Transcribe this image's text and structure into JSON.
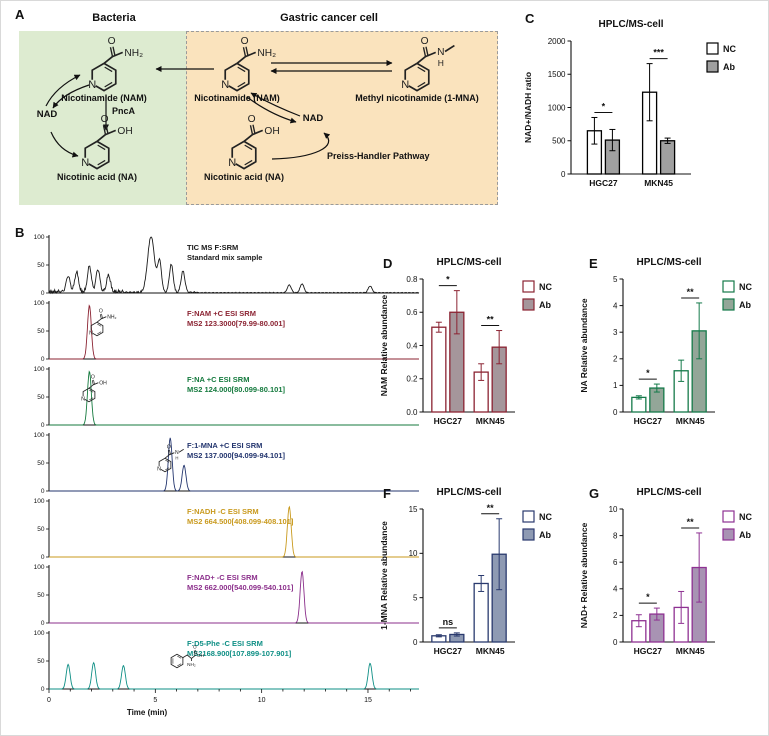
{
  "panels": {
    "A": {
      "label": "A",
      "bacteria_header": "Bacteria",
      "cancer_header": "Gastric cancer cell",
      "green": {
        "nam": "Nicotinamide (NAM)",
        "nad": "NAD",
        "pnca": "PncA",
        "na": "Nicotinic acid (NA)"
      },
      "orange": {
        "nam": "Nicotinamide (NAM)",
        "mna": "Methyl nicotinamide (1-MNA)",
        "nad": "NAD",
        "na": "Nicotinic acid (NA)",
        "pathway": "Preiss-Handler Pathway"
      },
      "colors": {
        "bacteria_bg": "#ddebd0",
        "cancer_bg": "#fae3bd",
        "dashed_border": "#9a9a9a"
      }
    },
    "B": {
      "label": "B"
    },
    "C": {
      "label": "C"
    },
    "D": {
      "label": "D"
    },
    "E": {
      "label": "E"
    },
    "F": {
      "label": "F"
    },
    "G": {
      "label": "G"
    }
  },
  "structures": {
    "ring_n": "N",
    "nam": {
      "o": "O",
      "sub": "NH₂"
    },
    "na": {
      "o": "O",
      "sub": "OH"
    },
    "mna": {
      "o": "O",
      "n": "N",
      "h": "H"
    },
    "phe": {
      "o": "O",
      "oh": "OH",
      "nh2": "NH₂"
    }
  },
  "chart_data": [
    {
      "id": "B",
      "type": "line",
      "title": "",
      "xlabel": "Time (min)",
      "xlim": [
        0,
        17.4
      ],
      "xticks": [
        0,
        5,
        10,
        15
      ],
      "ylim": [
        0,
        100
      ],
      "yticks": [
        0,
        50,
        100
      ],
      "traces": [
        {
          "name": "TIC",
          "color": "#1a1a1a",
          "label_lines": [
            "TIC MS F:SRM",
            "Standard mix sample"
          ],
          "noise": true,
          "peaks": [
            [
              0.9,
              28
            ],
            [
              1.3,
              35
            ],
            [
              1.9,
              46
            ],
            [
              2.3,
              40
            ],
            [
              2.8,
              30
            ],
            [
              4.8,
              100,
              0.16
            ],
            [
              5.2,
              55
            ],
            [
              5.75,
              50
            ],
            [
              6.3,
              38
            ],
            [
              11.3,
              14
            ],
            [
              11.9,
              16
            ],
            [
              15.1,
              12
            ]
          ]
        },
        {
          "name": "NAM",
          "color": "#8b2332",
          "label_lines": [
            "F:NAM +C ESI SRM",
            "MS2 123.3000[79.99-80.001]"
          ],
          "structure": "nam",
          "peaks": [
            [
              1.9,
              96
            ]
          ]
        },
        {
          "name": "NA",
          "color": "#157a3e",
          "label_lines": [
            "F:NA +C ESI SRM",
            "MS2 124.000[80.099-80.101]"
          ],
          "structure": "na",
          "peaks": [
            [
              1.9,
              96
            ]
          ]
        },
        {
          "name": "1-MNA",
          "color": "#23356e",
          "label_lines": [
            "F:1-MNA +C ESI SRM",
            "MS2 137.000[94.099-94.101]"
          ],
          "structure": "mna",
          "peaks": [
            [
              5.7,
              95
            ],
            [
              6.35,
              46
            ]
          ]
        },
        {
          "name": "NADH",
          "color": "#c99a1e",
          "label_lines": [
            "F:NADH -C ESI SRM",
            "MS2 664.500[408.099-408.101]"
          ],
          "peaks": [
            [
              11.3,
              90
            ]
          ]
        },
        {
          "name": "NAD+",
          "color": "#8b2f8b",
          "label_lines": [
            "F:NAD+ -C ESI SRM",
            "MS2 662.000[540.099-540.101]"
          ],
          "peaks": [
            [
              11.9,
              92
            ]
          ]
        },
        {
          "name": "D5-Phe",
          "color": "#0e8f85",
          "label_lines": [
            "F:D5-Phe -C ESI SRM",
            "MS2168.900[107.899-107.901]"
          ],
          "structure": "phe",
          "peaks": [
            [
              0.9,
              44
            ],
            [
              2.1,
              47
            ],
            [
              3.5,
              42
            ],
            [
              15.1,
              46
            ]
          ]
        }
      ]
    },
    {
      "id": "C",
      "type": "bar",
      "title": "HPLC/MS-cell",
      "ylabel": "NAD+/NADH ratio",
      "ylim": [
        0,
        2000
      ],
      "yticks": [
        "0",
        "500",
        "1000",
        "1500",
        "2000"
      ],
      "categories": [
        "HGC27",
        "MKN45"
      ],
      "series": [
        {
          "name": "NC",
          "fill": "#ffffff",
          "values": [
            650,
            1230
          ],
          "errors": [
            200,
            430
          ]
        },
        {
          "name": "Ab",
          "fill": "#a0a0a0",
          "values": [
            510,
            500
          ],
          "errors": [
            160,
            40
          ]
        }
      ],
      "significance": [
        "*",
        "***"
      ],
      "border_color": "#000000"
    },
    {
      "id": "D",
      "type": "bar",
      "title": "HPLC/MS-cell",
      "ylabel": "NAM Relative abundance",
      "ylim": [
        0,
        0.8
      ],
      "yticks": [
        "0.0",
        "0.2",
        "0.4",
        "0.6",
        "0.8"
      ],
      "categories": [
        "HGC27",
        "MKN45"
      ],
      "series": [
        {
          "name": "NC",
          "fill": "#ffffff",
          "values": [
            0.51,
            0.24
          ],
          "errors": [
            0.03,
            0.05
          ]
        },
        {
          "name": "Ab",
          "fill": "#a5969b",
          "values": [
            0.6,
            0.39
          ],
          "errors": [
            0.13,
            0.1
          ]
        }
      ],
      "significance": [
        "*",
        "**"
      ],
      "border_color": "#8b2332"
    },
    {
      "id": "E",
      "type": "bar",
      "title": "HPLC/MS-cell",
      "ylabel": "NA Relative abundance",
      "ylim": [
        0,
        5
      ],
      "yticks": [
        "0",
        "1",
        "2",
        "3",
        "4",
        "5"
      ],
      "categories": [
        "HGC27",
        "MKN45"
      ],
      "series": [
        {
          "name": "NC",
          "fill": "#ffffff",
          "values": [
            0.55,
            1.55
          ],
          "errors": [
            0.06,
            0.4
          ]
        },
        {
          "name": "Ab",
          "fill": "#93a698",
          "values": [
            0.9,
            3.05
          ],
          "errors": [
            0.15,
            1.05
          ]
        }
      ],
      "significance": [
        "*",
        "**"
      ],
      "border_color": "#157a4a"
    },
    {
      "id": "F",
      "type": "bar",
      "title": "HPLC/MS-cell",
      "ylabel": "1-MNA Relative abundance",
      "ylim": [
        0,
        15
      ],
      "yticks": [
        "0",
        "5",
        "10",
        "15"
      ],
      "categories": [
        "HGC27",
        "MKN45"
      ],
      "series": [
        {
          "name": "NC",
          "fill": "#ffffff",
          "values": [
            0.7,
            6.6
          ],
          "errors": [
            0.12,
            0.9
          ]
        },
        {
          "name": "Ab",
          "fill": "#8e9ab3",
          "values": [
            0.85,
            9.9
          ],
          "errors": [
            0.18,
            4.0
          ]
        }
      ],
      "significance": [
        "ns",
        "**"
      ],
      "border_color": "#2a3a6e"
    },
    {
      "id": "G",
      "type": "bar",
      "title": "HPLC/MS-cell",
      "ylabel": "NAD+ Relative abundance",
      "ylim": [
        0,
        10
      ],
      "yticks": [
        "0",
        "2",
        "4",
        "6",
        "8",
        "10"
      ],
      "categories": [
        "HGC27",
        "MKN45"
      ],
      "series": [
        {
          "name": "NC",
          "fill": "#ffffff",
          "values": [
            1.6,
            2.6
          ],
          "errors": [
            0.45,
            1.2
          ]
        },
        {
          "name": "Ab",
          "fill": "#a893b3",
          "values": [
            2.1,
            5.6
          ],
          "errors": [
            0.45,
            2.6
          ]
        }
      ],
      "significance": [
        "*",
        "**"
      ],
      "border_color": "#8e3192"
    }
  ]
}
